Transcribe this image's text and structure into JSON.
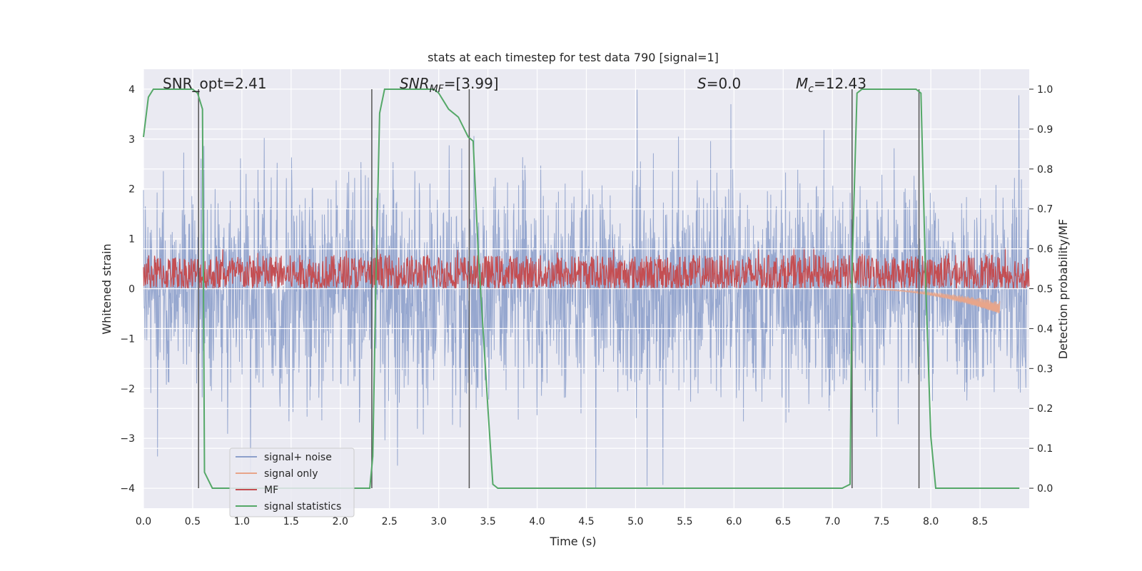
{
  "chart_data": {
    "type": "line",
    "title": "stats at each timestep for test data 790 [signal=1]",
    "xlabel": "Time (s)",
    "ylabel": "Whitened strain",
    "y2label": "Detection probability/MF",
    "xlim": [
      0.0,
      9.0
    ],
    "ylim": [
      -4.4,
      4.4
    ],
    "y2lim": [
      -0.05,
      1.05
    ],
    "xticks": [
      "0.0",
      "0.5",
      "1.0",
      "1.5",
      "2.0",
      "2.5",
      "3.0",
      "3.5",
      "4.0",
      "4.5",
      "5.0",
      "5.5",
      "6.0",
      "6.5",
      "7.0",
      "7.5",
      "8.0",
      "8.5"
    ],
    "xtick_values": [
      0.0,
      0.5,
      1.0,
      1.5,
      2.0,
      2.5,
      3.0,
      3.5,
      4.0,
      4.5,
      5.0,
      5.5,
      6.0,
      6.5,
      7.0,
      7.5,
      8.0,
      8.5
    ],
    "yticks": [
      "−4",
      "−3",
      "−2",
      "−1",
      "0",
      "1",
      "2",
      "3",
      "4"
    ],
    "ytick_values": [
      -4,
      -3,
      -2,
      -1,
      0,
      1,
      2,
      3,
      4
    ],
    "y2ticks": [
      "0.0",
      "0.1",
      "0.2",
      "0.3",
      "0.4",
      "0.5",
      "0.6",
      "0.7",
      "0.8",
      "0.9",
      "1.0"
    ],
    "y2tick_values": [
      0.0,
      0.1,
      0.2,
      0.3,
      0.4,
      0.5,
      0.6,
      0.7,
      0.8,
      0.9,
      1.0
    ],
    "grid": true,
    "legend_placement": "lower-left",
    "annotations": {
      "snr_opt": "SNR_opt=2.41",
      "snr_mf_main": "SNR",
      "snr_mf_sub": "MF",
      "snr_mf_value": "=[3.99]",
      "s_main": "S",
      "s_value": "=0.0",
      "mc_main": "M",
      "mc_sub": "c",
      "mc_value": "=12.43"
    },
    "series": [
      {
        "name": "signal+ noise",
        "color": "#8da0cb",
        "kind": "noise",
        "amplitude_range": [
          -4.0,
          4.0
        ]
      },
      {
        "name": "signal only",
        "color": "#e8a58a",
        "kind": "chirp",
        "x_range": [
          7.15,
          8.7
        ],
        "peak_value": -0.5
      },
      {
        "name": "MF",
        "color": "#c44e52",
        "kind": "matched-filter",
        "y2_range": [
          0.5,
          0.6
        ]
      },
      {
        "name": "signal statistics",
        "color": "#55a868",
        "kind": "probability",
        "x": [
          0.0,
          0.05,
          0.1,
          0.5,
          0.55,
          0.6,
          0.62,
          0.7,
          0.8,
          2.3,
          2.33,
          2.36,
          2.4,
          2.45,
          2.5,
          2.95,
          3.0,
          3.05,
          3.1,
          3.2,
          3.3,
          3.35,
          3.4,
          3.5,
          3.55,
          3.6,
          7.1,
          7.18,
          7.2,
          7.25,
          7.3,
          7.85,
          7.9,
          7.95,
          8.0,
          8.05,
          8.9
        ],
        "y": [
          0.88,
          0.98,
          1.0,
          1.0,
          0.99,
          0.95,
          0.04,
          0.0,
          0.0,
          0.0,
          0.08,
          0.5,
          0.94,
          1.0,
          1.0,
          1.0,
          0.99,
          0.97,
          0.95,
          0.93,
          0.88,
          0.87,
          0.6,
          0.2,
          0.01,
          0.0,
          0.0,
          0.01,
          0.55,
          0.99,
          1.0,
          1.0,
          0.99,
          0.5,
          0.13,
          0.0,
          0.0
        ]
      }
    ],
    "vertical_markers": [
      0.56,
      2.32,
      3.31,
      7.2,
      7.88
    ]
  }
}
